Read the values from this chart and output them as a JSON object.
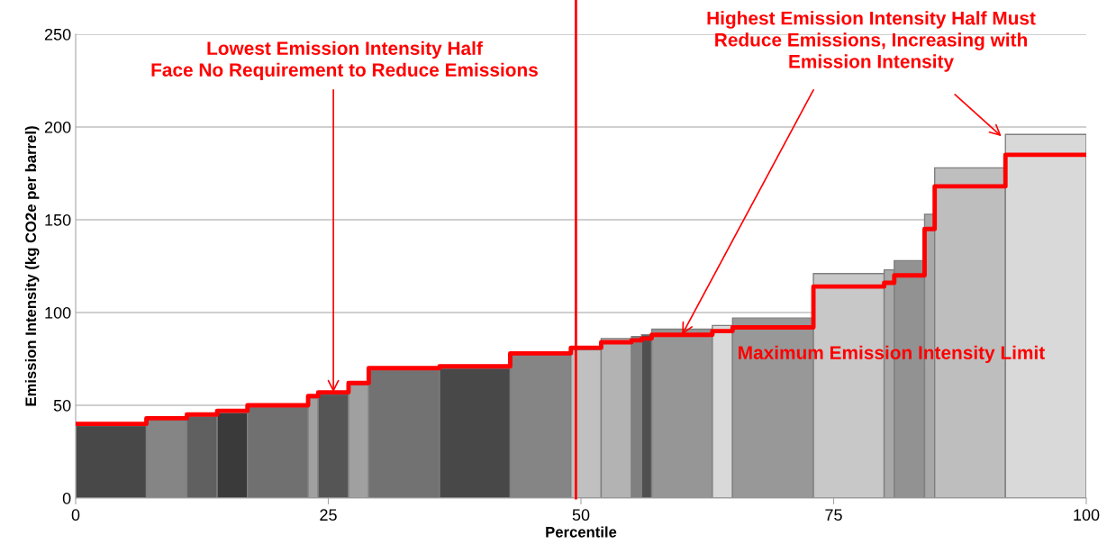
{
  "chart_data": {
    "type": "bar",
    "xlabel": "Percentile",
    "ylabel": "Emission Intensity (kg CO2e per barrel)",
    "xlim": [
      0,
      100
    ],
    "xticks": [
      0,
      25,
      50,
      75,
      100
    ],
    "ylim": [
      0,
      250
    ],
    "yticks": [
      0,
      50,
      100,
      150,
      200,
      250
    ],
    "grid": "y",
    "series": [
      {
        "x": [
          3.5,
          9,
          12.5,
          15.5,
          20,
          23.5,
          25.5,
          28,
          32.5,
          39.5,
          46,
          50.5,
          53.5,
          55.5,
          56.5,
          60,
          64,
          69,
          76.5,
          80.5,
          82.5,
          84.5,
          88.5,
          96
        ],
        "values": [
          39,
          42,
          44,
          46,
          49,
          54,
          56,
          61,
          69,
          70,
          77,
          80,
          86,
          87,
          88,
          91,
          93,
          97,
          121,
          123,
          128,
          153,
          178,
          196
        ],
        "colors": [
          "#484848",
          "#858585",
          "#606060",
          "#3a3a3a",
          "#707070",
          "#a0a0a0",
          "#555555",
          "#a0a0a0",
          "#727272",
          "#484848",
          "#858585",
          "#c0c0c0",
          "#b3b3b3",
          "#808080",
          "#505050",
          "#969696",
          "#d9d9d9",
          "#989898",
          "#c8c8c8",
          "#a8a8a8",
          "#929292",
          "#a8a8a8",
          "#bebebe",
          "#d9d9d9"
        ]
      },
      {
        "type": "step",
        "color": "#ff0000",
        "x": [
          0,
          7,
          11,
          14,
          17,
          23,
          24,
          27,
          29,
          36,
          43,
          49,
          52,
          55,
          56,
          57,
          63,
          65,
          73,
          80,
          81,
          84,
          85,
          92,
          100
        ],
        "values": [
          40,
          43,
          45,
          47,
          50,
          55,
          57,
          62,
          70,
          71,
          78,
          81,
          84,
          85,
          86,
          88,
          90,
          92,
          114,
          116,
          120,
          145,
          168,
          185,
          185
        ]
      }
    ],
    "ref_lines": [
      {
        "axis": "x",
        "value": 49.5,
        "color": "#ff0000"
      }
    ],
    "annotations": [
      {
        "text": "Lowest Emission Intensity Half\nFace No Requirement to Reduce Emissions",
        "x": 25.5,
        "y": 57
      },
      {
        "text": "Highest Emission Intensity Half Must\nReduce Emissions, Increasing with\nEmission Intensity",
        "x": 60,
        "y": 88
      },
      "Maximum Emission Intensity Limit"
    ]
  }
}
